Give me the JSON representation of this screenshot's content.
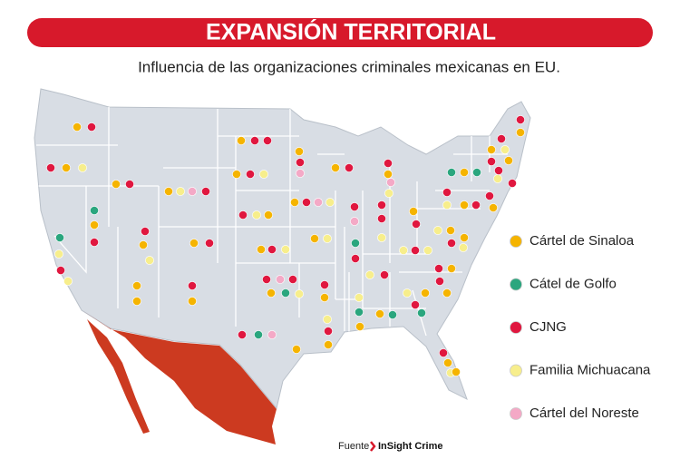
{
  "header": {
    "title": "EXPANSIÓN TERRITORIAL",
    "subtitle": "Influencia de las organizaciones criminales mexicanas en EU."
  },
  "legend": {
    "items": [
      {
        "label": "Cártel de Sinaloa",
        "color": "#f5b400"
      },
      {
        "label": "Cátel de Golfo",
        "color": "#2aa67e"
      },
      {
        "label": "CJNG",
        "color": "#e0173f"
      },
      {
        "label": "Familia Michuacana",
        "color": "#f7ee8c"
      },
      {
        "label": "Cártel del Noreste",
        "color": "#f4a9c6"
      }
    ]
  },
  "source": {
    "label": "Fuente",
    "name": "InSight Crime"
  }
}
